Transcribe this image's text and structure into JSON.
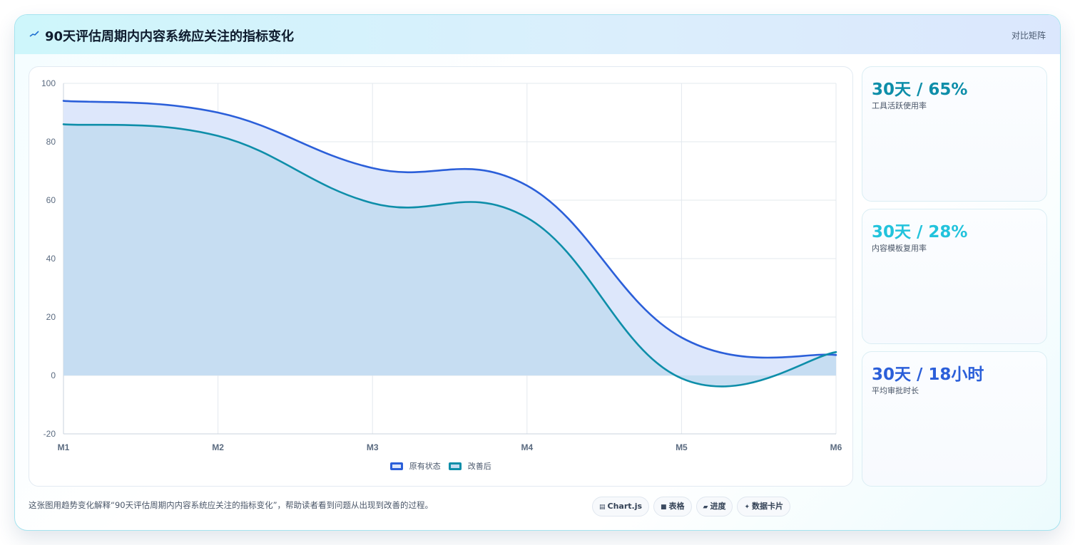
{
  "header": {
    "title": "90天评估周期内内容系统应关注的指标变化",
    "title_icon": "trend-line-icon",
    "action_label": "对比矩阵"
  },
  "chart_data": {
    "type": "area",
    "categories": [
      "M1",
      "M2",
      "M3",
      "M4",
      "M5",
      "M6"
    ],
    "ylim": [
      -20,
      100
    ],
    "yticks": [
      100,
      80,
      60,
      40,
      20,
      0,
      -20
    ],
    "grid": true,
    "legend_position": "bottom-center",
    "series": [
      {
        "name": "原有状态",
        "values": [
          94,
          90,
          71,
          65,
          13,
          7
        ],
        "color": "#2b5fd9",
        "fill": "#dde7fb"
      },
      {
        "name": "改善后",
        "values": [
          86,
          82,
          59,
          54,
          -1,
          8
        ],
        "color": "#0e8ea9",
        "fill": "#c4dcf1"
      }
    ]
  },
  "kpis": [
    {
      "value": "30天 / 65%",
      "label": "工具活跃使用率",
      "color": "#0e8ea9"
    },
    {
      "value": "30天 / 28%",
      "label": "内容模板复用率",
      "color": "#22c3dc"
    },
    {
      "value": "30天 / 18小时",
      "label": "平均审批时长",
      "color": "#2b5fd9"
    }
  ],
  "caption": "这张图用趋势变化解释“90天评估周期内内容系统应关注的指标变化”，帮助读者看到问题从出现到改善的过程。",
  "chips": [
    {
      "icon": "chart-icon",
      "glyph": "▤",
      "label": "Chart.js"
    },
    {
      "icon": "table-icon",
      "glyph": "■",
      "label": "表格"
    },
    {
      "icon": "progress-icon",
      "glyph": "▰",
      "label": "进度"
    },
    {
      "icon": "data-card-icon",
      "glyph": "✦",
      "label": "数据卡片"
    }
  ]
}
